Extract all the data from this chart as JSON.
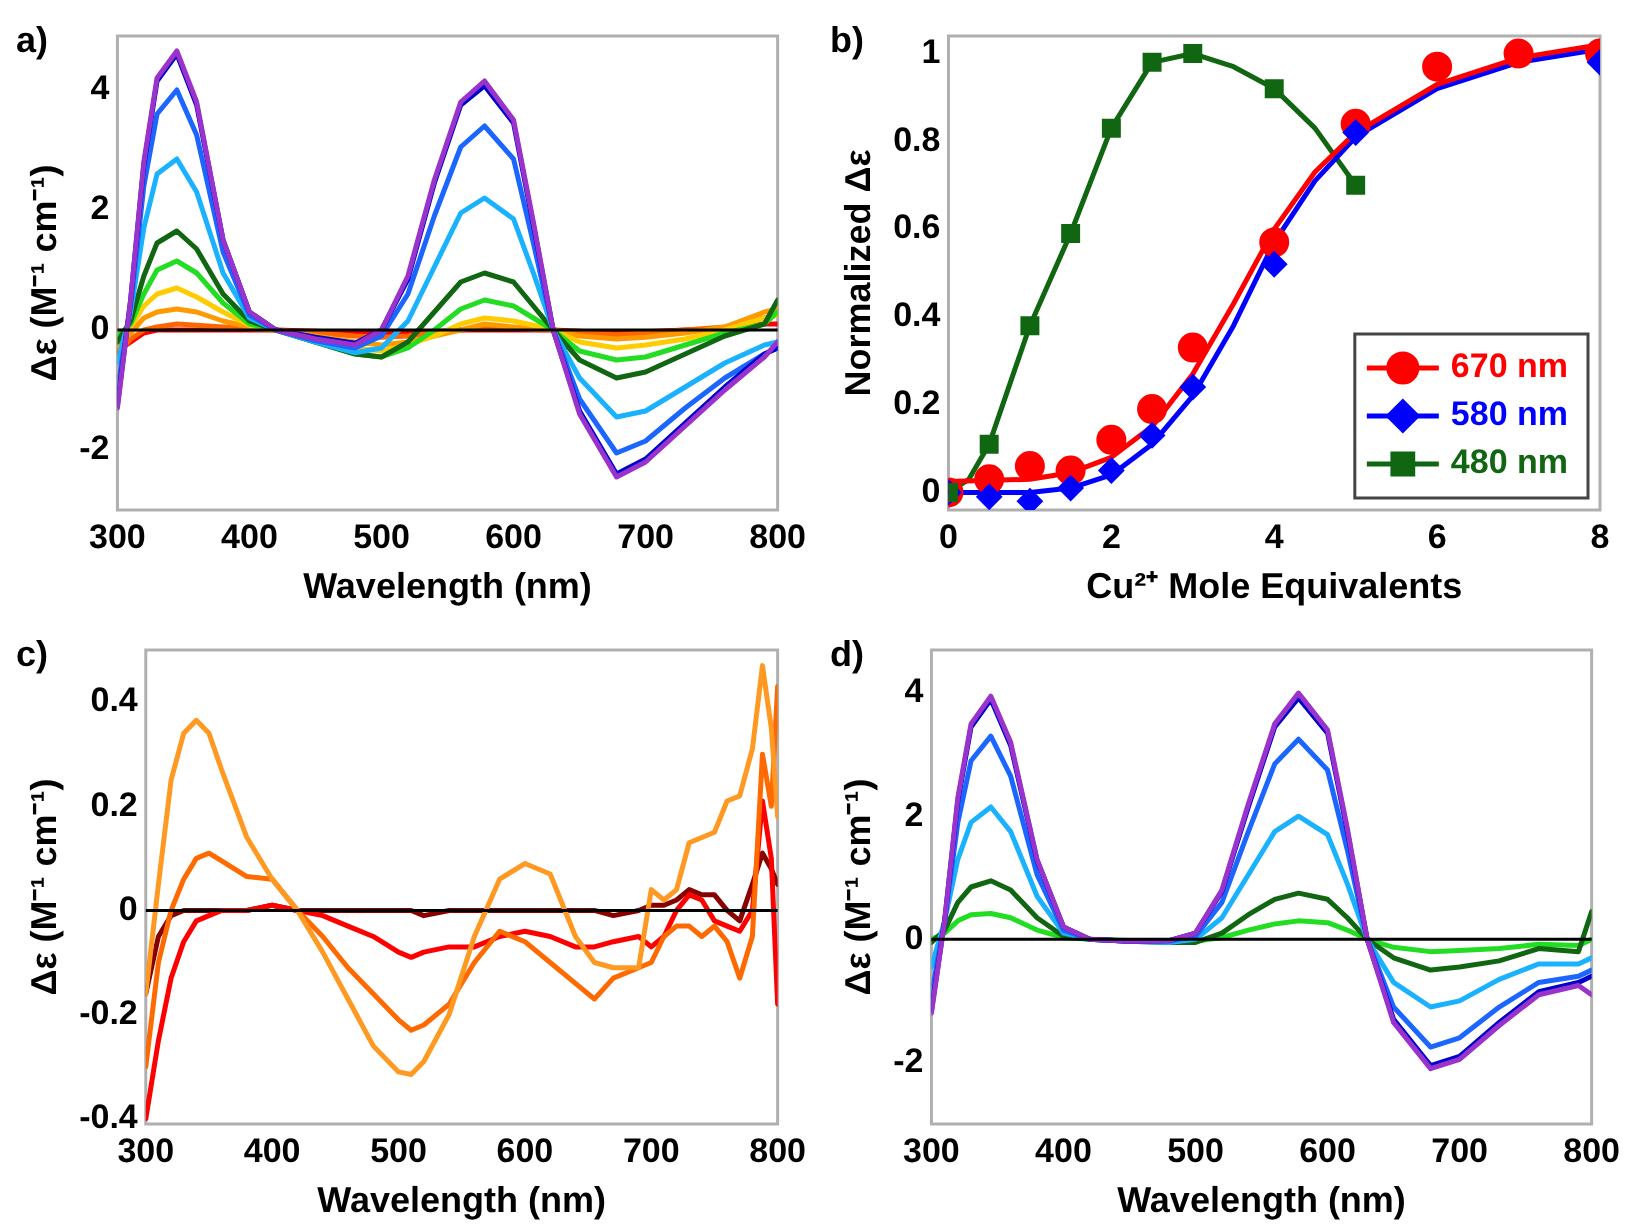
{
  "chart_data": [
    {
      "type": "line",
      "title": "a)",
      "xlabel": "Wavelength (nm)",
      "ylabel": "Δε (M⁻¹ cm⁻¹)",
      "xlim": [
        300,
        800
      ],
      "xticks": [
        300,
        400,
        500,
        600,
        700,
        800
      ],
      "ylim": [
        -3,
        4.9
      ],
      "yticks": [
        -2,
        0,
        2,
        4
      ],
      "ref_lines": [
        {
          "axis": "y",
          "value": 0,
          "color": "#000000"
        }
      ],
      "x": [
        300,
        310,
        320,
        330,
        345,
        360,
        380,
        400,
        420,
        450,
        480,
        500,
        520,
        540,
        560,
        578,
        600,
        615,
        630,
        650,
        678,
        700,
        730,
        760,
        790,
        800
      ],
      "series": [
        {
          "color": "#9933cc",
          "values": [
            -1.3,
            0.5,
            2.8,
            4.2,
            4.65,
            3.8,
            1.5,
            0.3,
            0,
            -0.15,
            -0.25,
            0,
            0.9,
            2.5,
            3.8,
            4.15,
            3.5,
            1.8,
            0,
            -1.4,
            -2.45,
            -2.2,
            -1.6,
            -1.0,
            -0.45,
            -0.2
          ]
        },
        {
          "color": "#0000cc",
          "values": [
            -1.25,
            0.5,
            2.75,
            4.15,
            4.6,
            3.75,
            1.5,
            0.3,
            0,
            -0.12,
            -0.22,
            0,
            0.85,
            2.45,
            3.75,
            4.07,
            3.45,
            1.75,
            0,
            -1.35,
            -2.4,
            -2.15,
            -1.55,
            -0.95,
            -0.4,
            -0.3
          ]
        },
        {
          "color": "#1a66ff",
          "values": [
            -1.0,
            0.4,
            2.4,
            3.6,
            4.0,
            3.25,
            1.3,
            0.25,
            0,
            -0.18,
            -0.3,
            -0.1,
            0.6,
            1.9,
            3.05,
            3.4,
            2.85,
            1.45,
            0,
            -1.15,
            -2.05,
            -1.85,
            -1.3,
            -0.8,
            -0.4,
            -0.3
          ]
        },
        {
          "color": "#1ab2ff",
          "values": [
            -0.55,
            0.3,
            1.7,
            2.6,
            2.85,
            2.3,
            0.95,
            0.2,
            0,
            -0.2,
            -0.38,
            -0.3,
            0.15,
            1.05,
            1.95,
            2.2,
            1.85,
            0.95,
            0,
            -0.8,
            -1.45,
            -1.35,
            -0.95,
            -0.55,
            -0.25,
            -0.2
          ]
        },
        {
          "color": "#116611",
          "values": [
            -0.2,
            0.15,
            0.9,
            1.45,
            1.65,
            1.35,
            0.6,
            0.15,
            0,
            -0.2,
            -0.4,
            -0.45,
            -0.2,
            0.3,
            0.8,
            0.95,
            0.8,
            0.4,
            0,
            -0.5,
            -0.8,
            -0.7,
            -0.4,
            -0.1,
            0.1,
            0.5
          ]
        },
        {
          "color": "#22dd22",
          "values": [
            -0.1,
            0.1,
            0.6,
            1.0,
            1.15,
            0.95,
            0.45,
            0.1,
            0,
            -0.2,
            -0.4,
            -0.45,
            -0.3,
            0,
            0.35,
            0.5,
            0.4,
            0.2,
            0,
            -0.35,
            -0.5,
            -0.45,
            -0.25,
            -0.05,
            0.1,
            0.3
          ]
        },
        {
          "color": "#ffcc00",
          "values": [
            -0.15,
            0.05,
            0.4,
            0.6,
            0.7,
            0.55,
            0.3,
            0.08,
            0,
            -0.15,
            -0.3,
            -0.35,
            -0.25,
            -0.1,
            0.1,
            0.2,
            0.15,
            0.08,
            0,
            -0.2,
            -0.3,
            -0.25,
            -0.15,
            0,
            0.2,
            0.25
          ]
        },
        {
          "color": "#ff9900",
          "values": [
            -0.3,
            -0.05,
            0.2,
            0.3,
            0.35,
            0.3,
            0.15,
            0.05,
            0,
            -0.1,
            -0.2,
            -0.25,
            -0.2,
            -0.1,
            0,
            0.1,
            0.05,
            0.02,
            0,
            -0.1,
            -0.15,
            -0.12,
            -0.05,
            0.05,
            0.3,
            0.35
          ]
        },
        {
          "color": "#ff6600",
          "values": [
            -0.4,
            -0.15,
            0,
            0.05,
            0.1,
            0.08,
            0.05,
            0.02,
            0,
            -0.05,
            -0.1,
            -0.12,
            -0.1,
            -0.05,
            0,
            0.05,
            0.03,
            0.01,
            0,
            -0.05,
            -0.08,
            -0.05,
            0,
            0.05,
            0.2,
            0.25
          ]
        },
        {
          "color": "#ff0000",
          "values": [
            -0.35,
            -0.2,
            -0.05,
            0,
            0,
            0,
            0,
            0,
            0,
            -0.02,
            -0.05,
            -0.05,
            -0.05,
            -0.03,
            0,
            0,
            0,
            0,
            0,
            -0.02,
            -0.05,
            -0.03,
            0,
            0.02,
            0.1,
            0.1
          ]
        }
      ]
    },
    {
      "type": "scatter",
      "title": "b)",
      "xlabel": "Cu²⁺ Mole Equivalents",
      "ylabel": "Normalized Δε",
      "xlim": [
        0,
        8
      ],
      "xticks": [
        0,
        2,
        4,
        6,
        8
      ],
      "ylim": [
        -0.04,
        1.04
      ],
      "yticks": [
        0,
        0.2,
        0.4,
        0.6,
        0.8,
        1
      ],
      "legend": "bottom right",
      "series": [
        {
          "name": "670 nm",
          "color": "#ff0000",
          "marker": "circle",
          "x": [
            0,
            0.5,
            1,
            1.5,
            2,
            2.5,
            3,
            4,
            5,
            6,
            7,
            8
          ],
          "values": [
            0,
            0.03,
            0.06,
            0.05,
            0.12,
            0.19,
            0.33,
            0.57,
            0.84,
            0.97,
            1.0,
            1.0
          ]
        },
        {
          "name": "580 nm",
          "color": "#0000ff",
          "marker": "diamond",
          "x": [
            0,
            0.5,
            1,
            1.5,
            2,
            2.5,
            3,
            4,
            5,
            6,
            7,
            8
          ],
          "values": [
            0,
            -0.01,
            -0.02,
            0.01,
            0.05,
            0.13,
            0.24,
            0.52,
            0.82,
            null,
            null,
            0.98
          ]
        },
        {
          "name": "480 nm",
          "color": "#116611",
          "marker": "square",
          "x": [
            0,
            0.5,
            1,
            1.5,
            2,
            2.5,
            3,
            4,
            5
          ],
          "values": [
            0,
            0.11,
            0.38,
            0.59,
            0.83,
            0.98,
            1.0,
            0.92,
            0.7
          ]
        },
        {
          "type": "line",
          "color": "#ff0000",
          "x": [
            0,
            1,
            1.5,
            2,
            2.5,
            3,
            3.5,
            4,
            4.5,
            5,
            6,
            7,
            8
          ],
          "values": [
            0.025,
            0.03,
            0.045,
            0.08,
            0.15,
            0.27,
            0.43,
            0.6,
            0.73,
            0.82,
            0.93,
            0.99,
            1.02
          ]
        },
        {
          "type": "line",
          "color": "#0000ff",
          "x": [
            0,
            1,
            1.5,
            2,
            2.5,
            3,
            3.5,
            4,
            4.5,
            5,
            6,
            7,
            8
          ],
          "values": [
            0,
            0,
            0.01,
            0.04,
            0.11,
            0.22,
            0.38,
            0.57,
            0.71,
            0.81,
            0.92,
            0.98,
            1.01
          ]
        },
        {
          "type": "line",
          "color": "#116611",
          "x": [
            0,
            0.25,
            0.5,
            1,
            1.5,
            2,
            2.5,
            3,
            3.5,
            4,
            4.5,
            5
          ],
          "values": [
            0,
            0.03,
            0.11,
            0.38,
            0.59,
            0.83,
            0.98,
            1.0,
            0.97,
            0.92,
            0.83,
            0.7
          ]
        }
      ]
    },
    {
      "type": "line",
      "title": "c)",
      "xlabel": "Wavelength (nm)",
      "ylabel": "Δε (M⁻¹ cm⁻¹)",
      "xlim": [
        300,
        800
      ],
      "xticks": [
        300,
        400,
        500,
        600,
        700,
        800
      ],
      "ylim": [
        -0.41,
        0.5
      ],
      "yticks": [
        -0.4,
        -0.2,
        0,
        0.2,
        0.4
      ],
      "ref_lines": [
        {
          "axis": "y",
          "value": 0,
          "color": "#000000"
        }
      ],
      "x": [
        300,
        310,
        320,
        330,
        340,
        350,
        360,
        380,
        400,
        420,
        440,
        460,
        480,
        500,
        510,
        520,
        540,
        560,
        580,
        600,
        620,
        640,
        655,
        670,
        690,
        700,
        710,
        720,
        730,
        740,
        750,
        760,
        770,
        780,
        788,
        795,
        800
      ],
      "series": [
        {
          "color": "#ff9922",
          "values": [
            -0.16,
            0.05,
            0.25,
            0.34,
            0.365,
            0.34,
            0.27,
            0.14,
            0.06,
            0.0,
            -0.08,
            -0.17,
            -0.26,
            -0.31,
            -0.315,
            -0.29,
            -0.2,
            -0.05,
            0.06,
            0.09,
            0.07,
            -0.05,
            -0.1,
            -0.11,
            -0.11,
            0.04,
            0.02,
            0.04,
            0.13,
            0.14,
            0.15,
            0.21,
            0.22,
            0.31,
            0.47,
            0.35,
            0.18
          ]
        },
        {
          "color": "#ff6a00",
          "values": [
            -0.3,
            -0.1,
            0.0,
            0.06,
            0.1,
            0.11,
            0.095,
            0.065,
            0.06,
            0.0,
            -0.05,
            -0.11,
            -0.16,
            -0.21,
            -0.23,
            -0.22,
            -0.18,
            -0.1,
            -0.04,
            -0.06,
            -0.1,
            -0.14,
            -0.17,
            -0.13,
            -0.11,
            -0.1,
            -0.05,
            -0.03,
            -0.03,
            -0.05,
            -0.03,
            -0.06,
            -0.13,
            -0.05,
            0.3,
            0.2,
            0.43
          ]
        },
        {
          "color": "#ff0000",
          "values": [
            -0.4,
            -0.25,
            -0.13,
            -0.06,
            -0.02,
            -0.01,
            0.0,
            0.0,
            0.01,
            0.0,
            -0.01,
            -0.03,
            -0.05,
            -0.08,
            -0.09,
            -0.08,
            -0.07,
            -0.07,
            -0.05,
            -0.04,
            -0.05,
            -0.07,
            -0.07,
            -0.06,
            -0.05,
            -0.07,
            -0.05,
            0.0,
            0.03,
            0.02,
            -0.02,
            -0.03,
            -0.04,
            0.0,
            0.21,
            0.1,
            -0.18
          ]
        },
        {
          "color": "#880000",
          "values": [
            -0.16,
            -0.05,
            -0.01,
            0.0,
            0.0,
            0.0,
            0.0,
            0.0,
            0.01,
            0.0,
            0.0,
            0.0,
            0.0,
            0.0,
            0.0,
            -0.01,
            0.0,
            0.0,
            0.0,
            0.0,
            0.0,
            0.0,
            0.0,
            -0.01,
            0.0,
            0.01,
            0.01,
            0.02,
            0.04,
            0.03,
            0.03,
            0.0,
            -0.02,
            0.05,
            0.11,
            0.08,
            0.05
          ]
        }
      ]
    },
    {
      "type": "line",
      "title": "d)",
      "xlabel": "Wavelength (nm)",
      "ylabel": "Δε (M⁻¹ cm⁻¹)",
      "xlim": [
        300,
        800
      ],
      "xticks": [
        300,
        400,
        500,
        600,
        700,
        800
      ],
      "ylim": [
        -3,
        4.7
      ],
      "yticks": [
        -2,
        0,
        2,
        4
      ],
      "ref_lines": [
        {
          "axis": "y",
          "value": 0,
          "color": "#000000"
        }
      ],
      "x": [
        300,
        310,
        320,
        330,
        345,
        360,
        380,
        400,
        420,
        450,
        480,
        500,
        520,
        540,
        560,
        578,
        600,
        615,
        630,
        650,
        678,
        700,
        730,
        760,
        790,
        800
      ],
      "series": [
        {
          "color": "#9933cc",
          "values": [
            -1.2,
            0.3,
            2.3,
            3.5,
            3.95,
            3.2,
            1.3,
            0.2,
            0,
            -0.03,
            -0.02,
            0.1,
            0.8,
            2.2,
            3.5,
            4.0,
            3.4,
            1.8,
            0,
            -1.35,
            -2.1,
            -1.95,
            -1.4,
            -0.9,
            -0.75,
            -0.9
          ]
        },
        {
          "color": "#0000cc",
          "values": [
            -1.15,
            0.3,
            2.25,
            3.45,
            3.9,
            3.15,
            1.28,
            0.2,
            0,
            -0.03,
            -0.02,
            0.1,
            0.78,
            2.15,
            3.45,
            3.92,
            3.35,
            1.75,
            0,
            -1.3,
            -2.05,
            -1.9,
            -1.35,
            -0.85,
            -0.7,
            -0.6
          ]
        },
        {
          "color": "#1a66ff",
          "values": [
            -0.9,
            0.3,
            1.9,
            2.9,
            3.3,
            2.65,
            1.05,
            0.15,
            0,
            -0.03,
            -0.03,
            0.05,
            0.6,
            1.75,
            2.85,
            3.25,
            2.75,
            1.45,
            0,
            -1.1,
            -1.75,
            -1.6,
            -1.1,
            -0.7,
            -0.6,
            -0.5
          ]
        },
        {
          "color": "#1ab2ff",
          "values": [
            -0.45,
            0.3,
            1.3,
            1.9,
            2.15,
            1.75,
            0.7,
            0.1,
            0,
            -0.03,
            -0.05,
            0,
            0.35,
            1.05,
            1.75,
            2.0,
            1.7,
            0.9,
            0,
            -0.7,
            -1.1,
            -1.0,
            -0.65,
            -0.4,
            -0.4,
            -0.3
          ]
        },
        {
          "color": "#116611",
          "values": [
            -0.05,
            0.15,
            0.6,
            0.85,
            0.95,
            0.8,
            0.35,
            0.05,
            0,
            -0.03,
            -0.05,
            -0.05,
            0.1,
            0.4,
            0.65,
            0.75,
            0.65,
            0.35,
            0,
            -0.3,
            -0.5,
            -0.45,
            -0.35,
            -0.15,
            -0.2,
            0.45
          ]
        },
        {
          "color": "#22dd22",
          "values": [
            0,
            0.1,
            0.3,
            0.4,
            0.42,
            0.35,
            0.15,
            0.03,
            0,
            -0.02,
            -0.03,
            -0.03,
            0.03,
            0.15,
            0.25,
            0.3,
            0.27,
            0.15,
            0,
            -0.13,
            -0.2,
            -0.18,
            -0.15,
            -0.08,
            -0.1,
            0
          ]
        }
      ]
    }
  ]
}
